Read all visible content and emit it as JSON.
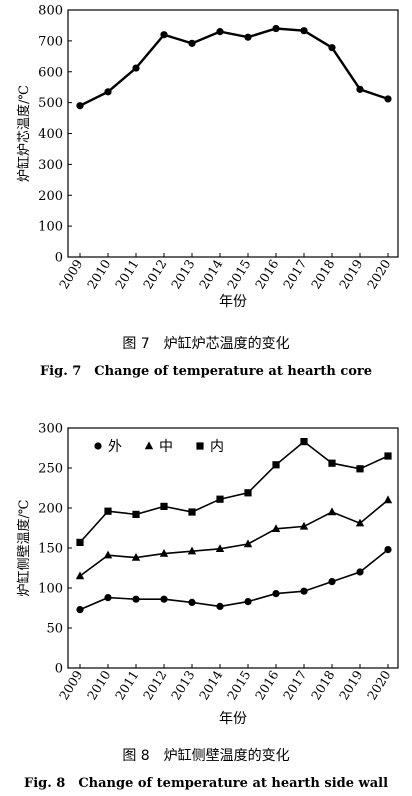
{
  "figure7": {
    "caption_cn": "图 7　炉缸炉芯温度的变化",
    "caption_en": "Fig. 7　Change of temperature at hearth core"
  },
  "figure8": {
    "caption_cn": "图 8　炉缸侧壁温度的变化",
    "caption_en": "Fig. 8　Change of temperature at hearth side wall"
  },
  "chart_data": [
    {
      "type": "line",
      "xlabel": "年份",
      "ylabel": "炉缸炉芯温度/℃",
      "ylim": [
        0,
        800
      ],
      "yticks": [
        0,
        100,
        200,
        300,
        400,
        500,
        600,
        700,
        800
      ],
      "categories": [
        "2009",
        "2010",
        "2011",
        "2012",
        "2013",
        "2014",
        "2015",
        "2016",
        "2017",
        "2018",
        "2019",
        "2020"
      ],
      "series": [
        {
          "values": [
            490,
            535,
            612,
            720,
            692,
            730,
            712,
            740,
            733,
            678,
            543,
            512
          ],
          "marker": "circle"
        }
      ],
      "grid": false
    },
    {
      "type": "line",
      "xlabel": "年份",
      "ylabel": "炉缸侧壁温度/℃",
      "ylim": [
        0,
        300
      ],
      "yticks": [
        0,
        50,
        100,
        150,
        200,
        250,
        300
      ],
      "categories": [
        "2009",
        "2010",
        "2011",
        "2012",
        "2013",
        "2014",
        "2015",
        "2016",
        "2017",
        "2018",
        "2019",
        "2020"
      ],
      "legend_position": "top-left",
      "series": [
        {
          "name": "外",
          "marker": "circle",
          "values": [
            73,
            88,
            86,
            86,
            82,
            77,
            83,
            93,
            96,
            108,
            120,
            148
          ]
        },
        {
          "name": "中",
          "marker": "triangle",
          "values": [
            115,
            141,
            138,
            143,
            146,
            149,
            155,
            174,
            177,
            195,
            181,
            210
          ]
        },
        {
          "name": "内",
          "marker": "square",
          "values": [
            157,
            196,
            192,
            202,
            195,
            211,
            219,
            254,
            283,
            256,
            249,
            265
          ]
        }
      ],
      "grid": false
    }
  ]
}
